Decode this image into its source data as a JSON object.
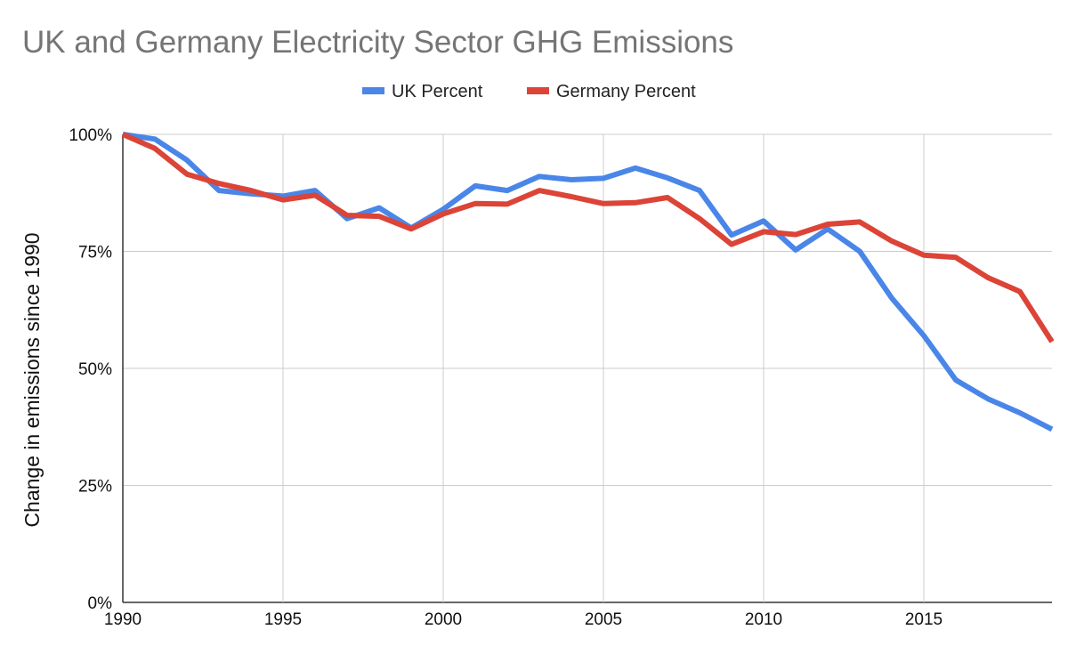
{
  "chart_data": {
    "type": "line",
    "title": "UK and Germany Electricity Sector GHG Emissions",
    "xlabel": "",
    "ylabel": "Change in emissions since 1990",
    "x": [
      1990,
      1991,
      1992,
      1993,
      1994,
      1995,
      1996,
      1997,
      1998,
      1999,
      2000,
      2001,
      2002,
      2003,
      2004,
      2005,
      2006,
      2007,
      2008,
      2009,
      2010,
      2011,
      2012,
      2013,
      2014,
      2015,
      2016,
      2017,
      2018,
      2019
    ],
    "xlim": [
      1990,
      2019
    ],
    "ylim": [
      0,
      100
    ],
    "x_ticks": [
      1990,
      1995,
      2000,
      2005,
      2010,
      2015
    ],
    "x_tick_labels": [
      "1990",
      "1995",
      "2000",
      "2005",
      "2010",
      "2015"
    ],
    "y_ticks": [
      0,
      25,
      50,
      75,
      100
    ],
    "y_tick_labels": [
      "0%",
      "25%",
      "50%",
      "75%",
      "100%"
    ],
    "grid": true,
    "legend_position": "top",
    "series": [
      {
        "name": "UK Percent",
        "color": "#4a86e8",
        "values": [
          100,
          99,
          94.5,
          88,
          87.3,
          86.8,
          88,
          82,
          84.3,
          80,
          84,
          89,
          88,
          91,
          90.3,
          90.6,
          92.8,
          90.7,
          88,
          78.5,
          81.5,
          75.3,
          79.8,
          75,
          65,
          57,
          47.5,
          43.5,
          40.5,
          37
        ]
      },
      {
        "name": "Germany Percent",
        "color": "#db4437",
        "values": [
          100,
          97,
          91.5,
          89.5,
          88,
          86,
          87,
          82.7,
          82.5,
          79.8,
          83,
          85.2,
          85.1,
          88,
          86.7,
          85.2,
          85.4,
          86.5,
          82,
          76.5,
          79.2,
          78.6,
          80.8,
          81.3,
          77.2,
          74.2,
          73.7,
          69.4,
          66.4,
          55.7
        ]
      }
    ]
  }
}
